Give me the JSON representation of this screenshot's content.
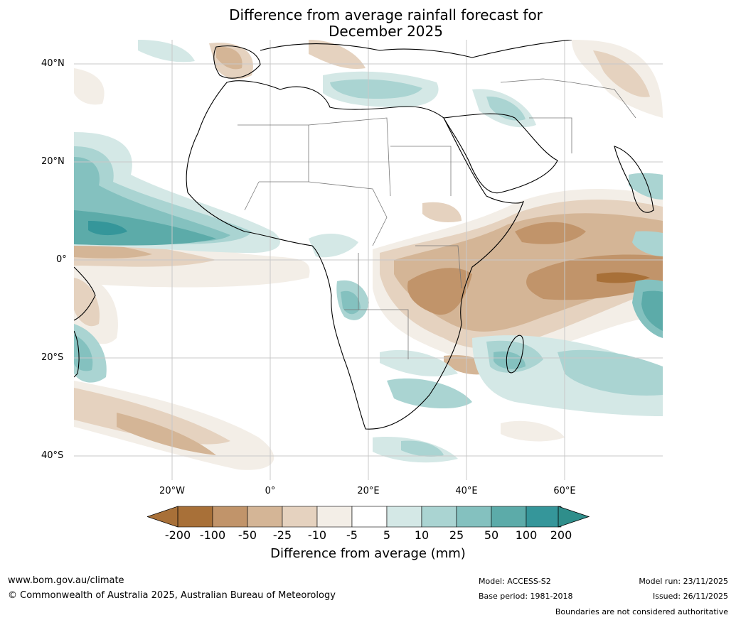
{
  "title_line1": "Difference from average rainfall forecast for",
  "title_line2": "December 2025",
  "latitude_labels": [
    "40°N",
    "20°N",
    "0°",
    "20°S",
    "40°S"
  ],
  "longitude_labels": [
    "20°W",
    "0°",
    "20°E",
    "40°E",
    "60°E"
  ],
  "colorbar": {
    "ticks": [
      "-200",
      "-100",
      "-50",
      "-25",
      "-10",
      "-5",
      "5",
      "10",
      "25",
      "50",
      "100",
      "200"
    ],
    "colors": [
      "#a87038",
      "#c1946a",
      "#d4b596",
      "#e5d2bf",
      "#f3eee7",
      "#ffffff",
      "#d4e8e6",
      "#aad4d2",
      "#84c1bf",
      "#5caba9",
      "#35969a",
      "#2b8c8a"
    ],
    "under_color": "#a87038",
    "over_color": "#2f8e8b",
    "label": "Difference from average (mm)"
  },
  "footer": {
    "website": "www.bom.gov.au/climate",
    "copyright": "© Commonwealth of Australia 2025, Australian Bureau of Meteorology",
    "model": "Model: ACCESS-S2",
    "base_period": "Base period: 1981-2018",
    "model_run": "Model run: 23/11/2025",
    "issued": "Issued: 26/11/2025",
    "disclaimer": "Boundaries are not considered authoritative"
  }
}
